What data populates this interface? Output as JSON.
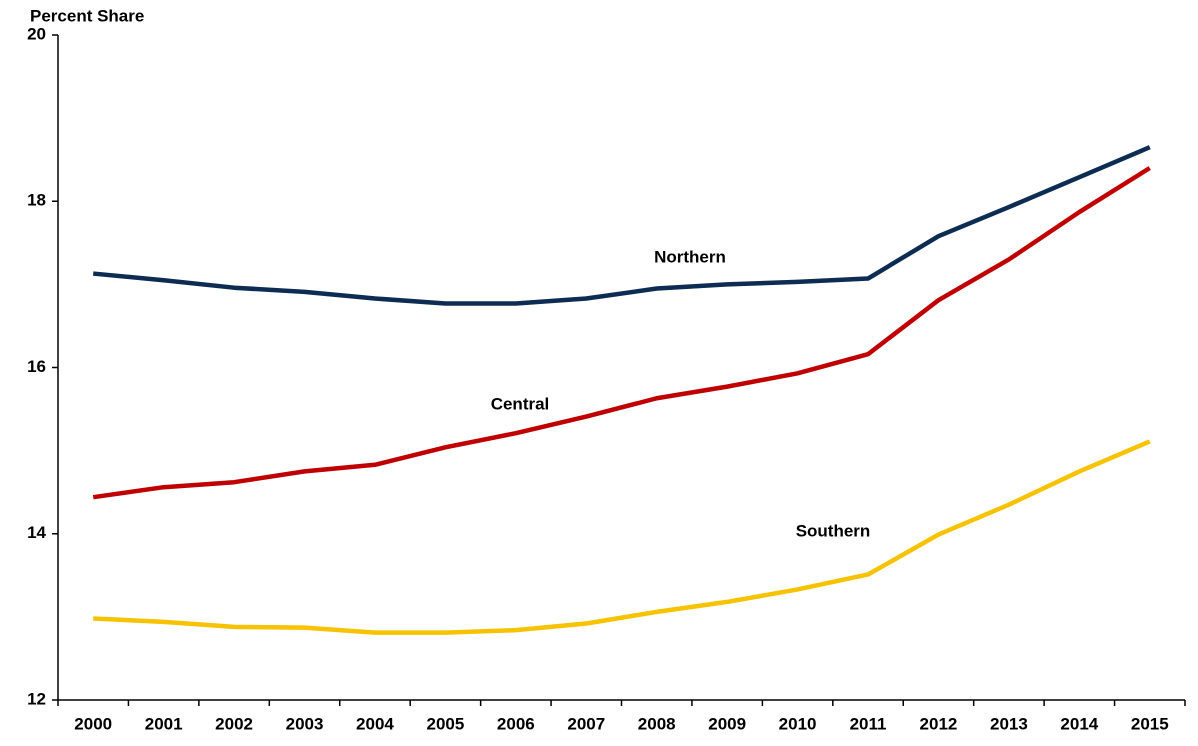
{
  "chart_data": {
    "type": "line",
    "y_label": "Percent Share",
    "categories": [
      "2000",
      "2001",
      "2002",
      "2003",
      "2004",
      "2005",
      "2006",
      "2007",
      "2008",
      "2009",
      "2010",
      "2011",
      "2012",
      "2013",
      "2014",
      "2015"
    ],
    "series": [
      {
        "name": "Northern",
        "color": "#0d2c54",
        "values": [
          17.13,
          17.05,
          16.96,
          16.91,
          16.83,
          16.77,
          16.77,
          16.83,
          16.95,
          17.0,
          17.03,
          17.07,
          17.58,
          17.93,
          18.29,
          18.65
        ]
      },
      {
        "name": "Central",
        "color": "#c00000",
        "values": [
          14.44,
          14.56,
          14.62,
          14.75,
          14.83,
          15.04,
          15.21,
          15.41,
          15.63,
          15.77,
          15.93,
          16.16,
          16.81,
          17.3,
          17.87,
          18.4
        ]
      },
      {
        "name": "Southern",
        "color": "#f7c200",
        "values": [
          12.98,
          12.94,
          12.88,
          12.87,
          12.81,
          12.81,
          12.84,
          12.92,
          13.06,
          13.18,
          13.33,
          13.51,
          13.99,
          14.35,
          14.75,
          15.11
        ]
      }
    ],
    "ylim": [
      12,
      20
    ],
    "yticks": [
      12,
      14,
      16,
      18,
      20
    ]
  }
}
